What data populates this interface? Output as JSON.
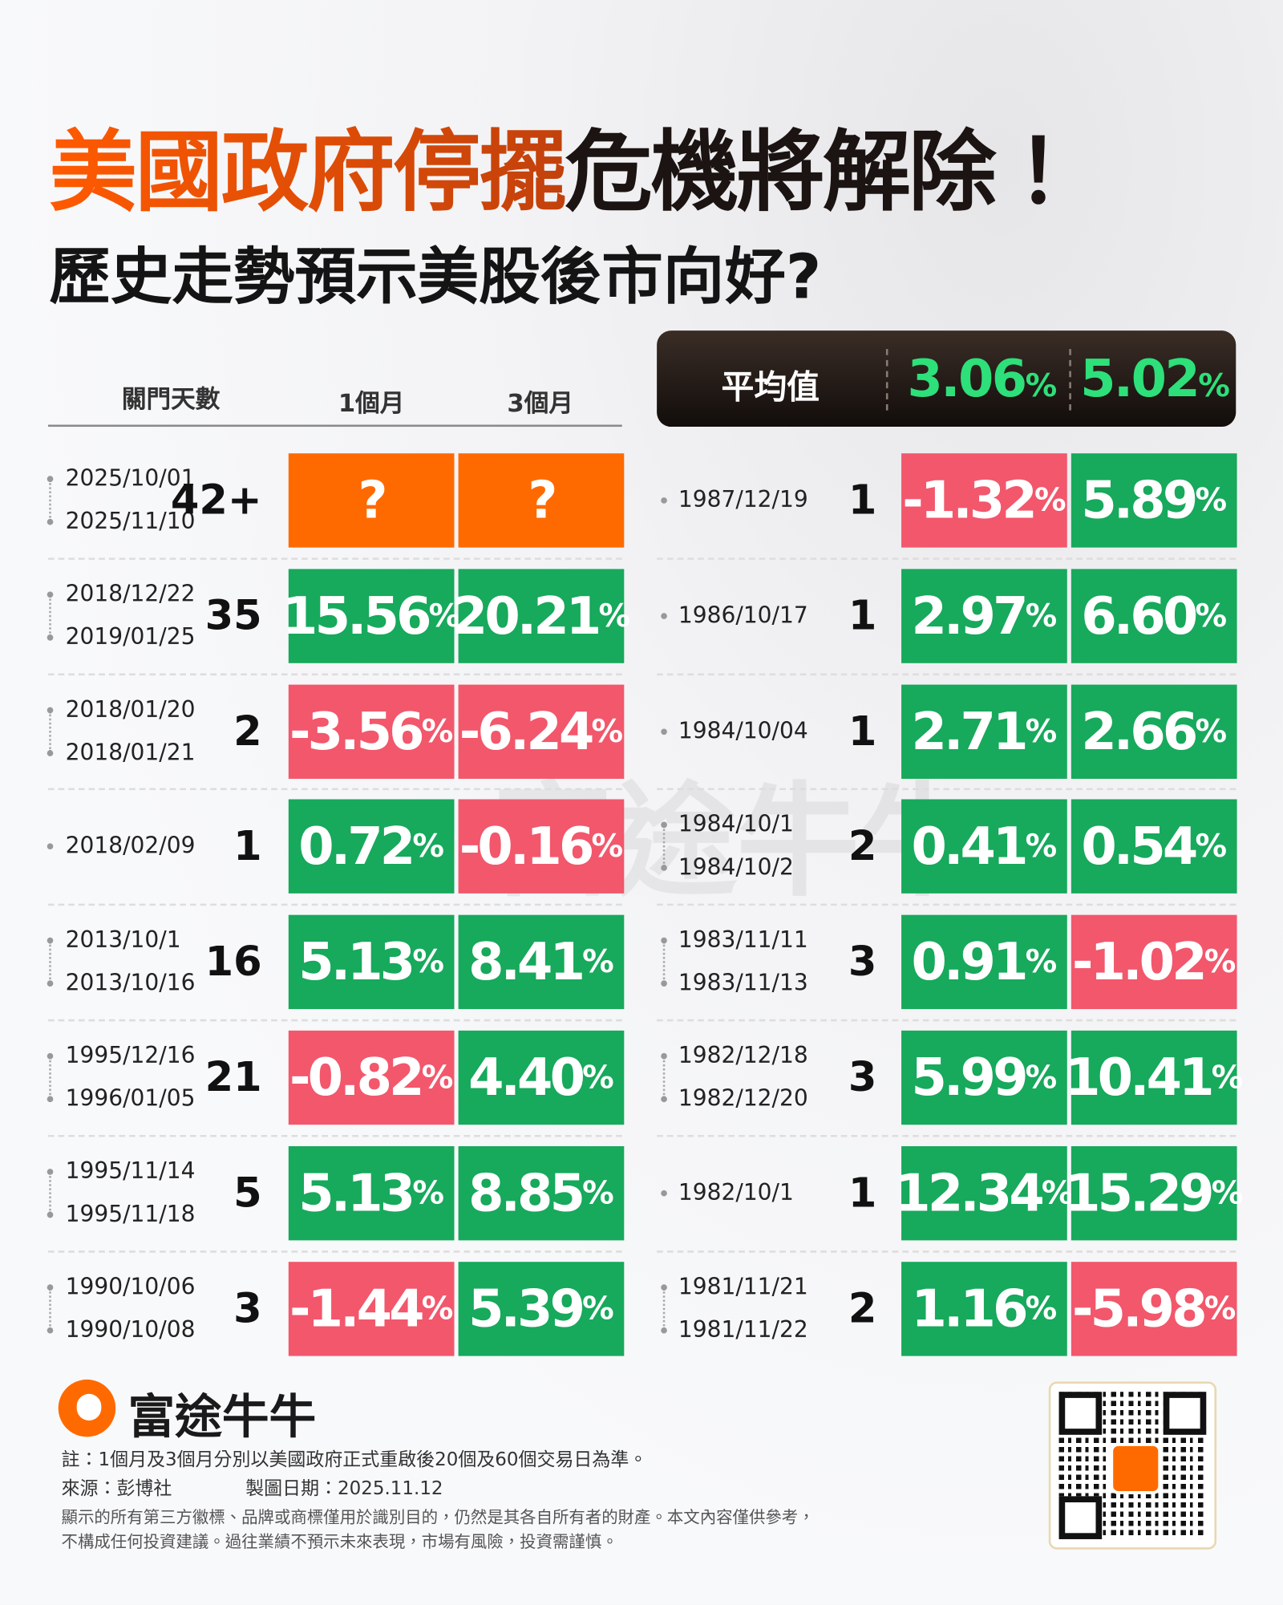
{
  "header": {
    "title_highlight": "美國政府停擺",
    "title_rest": "危機將解除！",
    "subtitle": "歷史走勢預示美股後市向好?"
  },
  "table": {
    "columns": [
      "關門天數",
      "1個月",
      "3個月"
    ],
    "average": {
      "label": "平均值",
      "m1": {
        "num": "3.06",
        "unit": "%"
      },
      "m3": {
        "num": "5.02",
        "unit": "%"
      }
    },
    "left_rows": [
      {
        "dates": [
          "2025/10/01",
          "2025/11/10"
        ],
        "days": "42+",
        "m1": {
          "num": "?"
        },
        "m3": {
          "num": "?"
        }
      },
      {
        "dates": [
          "2018/12/22",
          "2019/01/25"
        ],
        "days": "35",
        "m1": {
          "num": "15.56",
          "unit": "%"
        },
        "m3": {
          "num": "20.21",
          "unit": "%"
        }
      },
      {
        "dates": [
          "2018/01/20",
          "2018/01/21"
        ],
        "days": "2",
        "m1": {
          "num": "-3.56",
          "unit": "%"
        },
        "m3": {
          "num": "-6.24",
          "unit": "%"
        }
      },
      {
        "dates": [
          "2018/02/09"
        ],
        "days": "1",
        "m1": {
          "num": "0.72",
          "unit": "%"
        },
        "m3": {
          "num": "-0.16",
          "unit": "%"
        }
      },
      {
        "dates": [
          "2013/10/1",
          "2013/10/16"
        ],
        "days": "16",
        "m1": {
          "num": "5.13",
          "unit": "%"
        },
        "m3": {
          "num": "8.41",
          "unit": "%"
        }
      },
      {
        "dates": [
          "1995/12/16",
          "1996/01/05"
        ],
        "days": "21",
        "m1": {
          "num": "-0.82",
          "unit": "%"
        },
        "m3": {
          "num": "4.40",
          "unit": "%"
        }
      },
      {
        "dates": [
          "1995/11/14",
          "1995/11/18"
        ],
        "days": "5",
        "m1": {
          "num": "5.13",
          "unit": "%"
        },
        "m3": {
          "num": "8.85",
          "unit": "%"
        }
      },
      {
        "dates": [
          "1990/10/06",
          "1990/10/08"
        ],
        "days": "3",
        "m1": {
          "num": "-1.44",
          "unit": "%"
        },
        "m3": {
          "num": "5.39",
          "unit": "%"
        }
      }
    ],
    "right_rows": [
      {
        "dates": [
          "1987/12/19"
        ],
        "days": "1",
        "m1": {
          "num": "-1.32",
          "unit": "%"
        },
        "m3": {
          "num": "5.89",
          "unit": "%"
        }
      },
      {
        "dates": [
          "1986/10/17"
        ],
        "days": "1",
        "m1": {
          "num": "2.97",
          "unit": "%"
        },
        "m3": {
          "num": "6.60",
          "unit": "%"
        }
      },
      {
        "dates": [
          "1984/10/04"
        ],
        "days": "1",
        "m1": {
          "num": "2.71",
          "unit": "%"
        },
        "m3": {
          "num": "2.66",
          "unit": "%"
        }
      },
      {
        "dates": [
          "1984/10/1",
          "1984/10/2"
        ],
        "days": "2",
        "m1": {
          "num": "0.41",
          "unit": "%"
        },
        "m3": {
          "num": "0.54",
          "unit": "%"
        }
      },
      {
        "dates": [
          "1983/11/11",
          "1983/11/13"
        ],
        "days": "3",
        "m1": {
          "num": "0.91",
          "unit": "%"
        },
        "m3": {
          "num": "-1.02",
          "unit": "%"
        }
      },
      {
        "dates": [
          "1982/12/18",
          "1982/12/20"
        ],
        "days": "3",
        "m1": {
          "num": "5.99",
          "unit": "%"
        },
        "m3": {
          "num": "10.41",
          "unit": "%"
        }
      },
      {
        "dates": [
          "1982/10/1"
        ],
        "days": "1",
        "m1": {
          "num": "12.34",
          "unit": "%"
        },
        "m3": {
          "num": "15.29",
          "unit": "%"
        }
      },
      {
        "dates": [
          "1981/11/21",
          "1981/11/22"
        ],
        "days": "2",
        "m1": {
          "num": "1.16",
          "unit": "%"
        },
        "m3": {
          "num": "-5.98",
          "unit": "%"
        }
      }
    ]
  },
  "watermark": "富途牛牛",
  "footer": {
    "brand": "富途牛牛",
    "note": "註：1個月及3個月分別以美國政府正式重啟後20個及60個交易日為準。",
    "source": "來源：彭博社",
    "date": "製圖日期：2025.11.12",
    "disclaimer": [
      "顯示的所有第三方徽標、品牌或商標僅用於識別目的，仍然是其各自所有者的財產。本文內容僅供參考，",
      "不構成任何投資建議。過往業績不預示未來表現，市場有風險，投資需謹慎。"
    ]
  }
}
